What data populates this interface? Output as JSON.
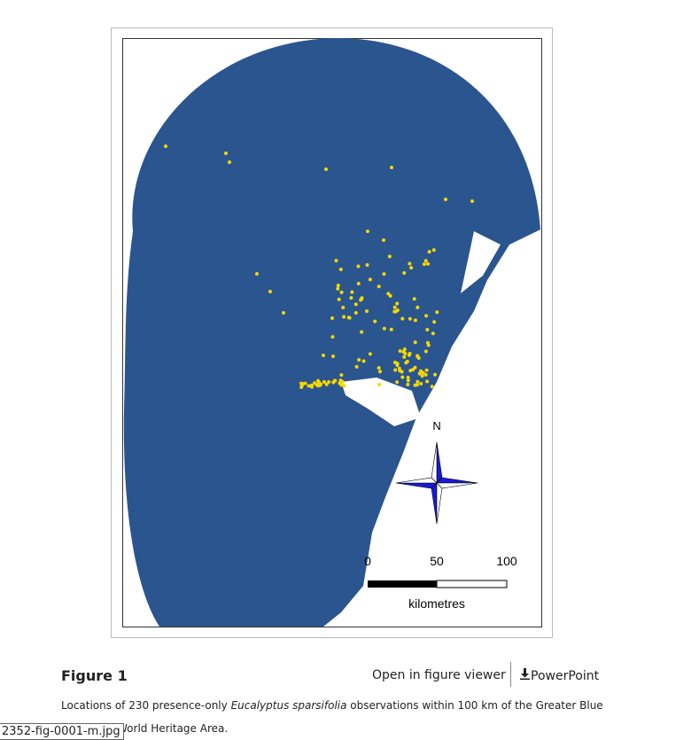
{
  "figure": {
    "map": {
      "north_label": "N",
      "scale_labels": [
        "0",
        "50",
        "100"
      ],
      "scale_unit": "kilometres"
    },
    "label": "Figure 1",
    "actions": {
      "viewer": "Open in figure viewer",
      "powerpoint": "PowerPoint"
    },
    "caption": {
      "before": "Locations of 230 presence-only ",
      "species": "Eucalyptus sparsifolia",
      "after": " observations within 100 km of the Greater Blue",
      "line2": "World Heritage Area."
    },
    "tooltip": "2352-fig-0001-m.jpg"
  }
}
